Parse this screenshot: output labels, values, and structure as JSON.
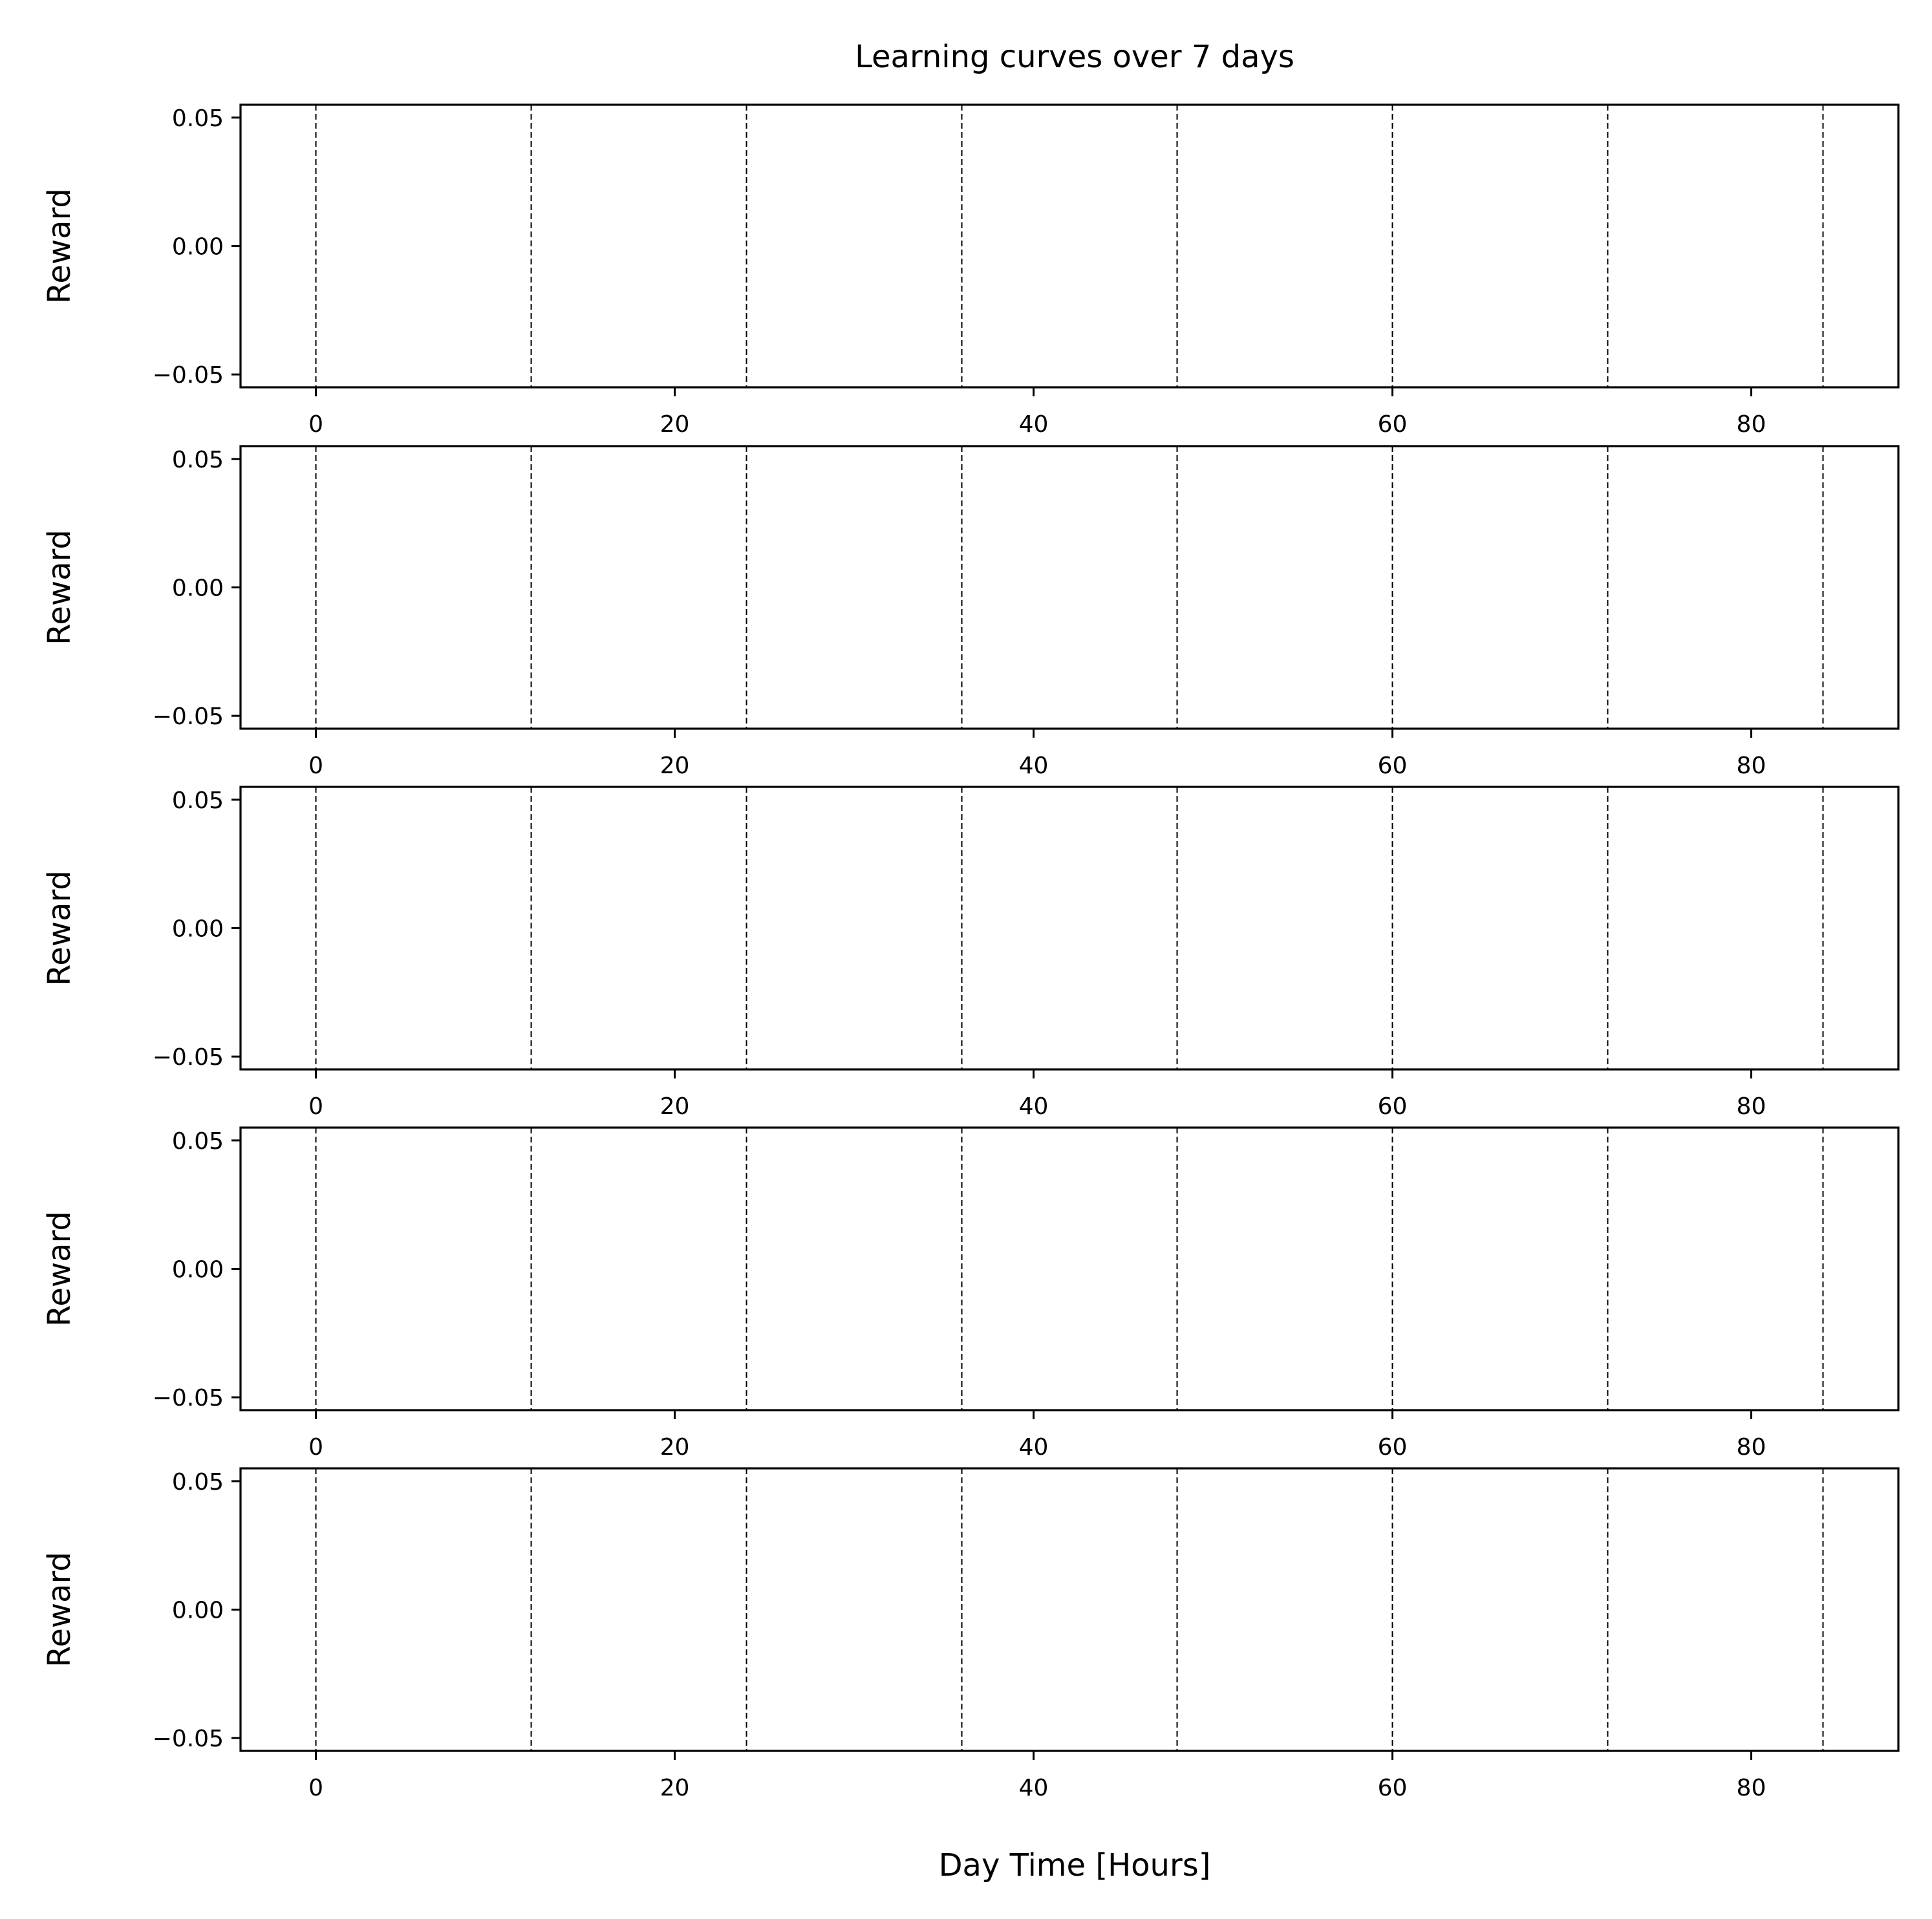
{
  "chart_data": {
    "type": "line",
    "title": "Learning curves over 7 days",
    "xlabel": "Day Time [Hours]",
    "xlim": [
      -4.2,
      88.2
    ],
    "x_ticks": [
      0,
      20,
      40,
      60,
      80
    ],
    "x_tick_labels": [
      "0",
      "20",
      "40",
      "60",
      "80"
    ],
    "vertical_reference_lines": {
      "x": [
        0,
        12,
        24,
        36,
        48,
        60,
        72,
        84
      ],
      "style": "dashed",
      "color": "#000000"
    },
    "grid": false,
    "legend": "none",
    "subplots": [
      {
        "ylabel": "Reward",
        "ylim": [
          -0.055,
          0.055
        ],
        "y_ticks": [
          0.05,
          0.0,
          -0.05
        ],
        "y_tick_labels": [
          "0.05",
          "0.00",
          "−0.05"
        ],
        "series": []
      },
      {
        "ylabel": "Reward",
        "ylim": [
          -0.055,
          0.055
        ],
        "y_ticks": [
          0.05,
          0.0,
          -0.05
        ],
        "y_tick_labels": [
          "0.05",
          "0.00",
          "−0.05"
        ],
        "series": []
      },
      {
        "ylabel": "Reward",
        "ylim": [
          -0.055,
          0.055
        ],
        "y_ticks": [
          0.05,
          0.0,
          -0.05
        ],
        "y_tick_labels": [
          "0.05",
          "0.00",
          "−0.05"
        ],
        "series": []
      },
      {
        "ylabel": "Reward",
        "ylim": [
          -0.055,
          0.055
        ],
        "y_ticks": [
          0.05,
          0.0,
          -0.05
        ],
        "y_tick_labels": [
          "0.05",
          "0.00",
          "−0.05"
        ],
        "series": []
      },
      {
        "ylabel": "Reward",
        "ylim": [
          -0.055,
          0.055
        ],
        "y_ticks": [
          0.05,
          0.0,
          -0.05
        ],
        "y_tick_labels": [
          "0.05",
          "0.00",
          "−0.05"
        ],
        "series": []
      }
    ]
  }
}
